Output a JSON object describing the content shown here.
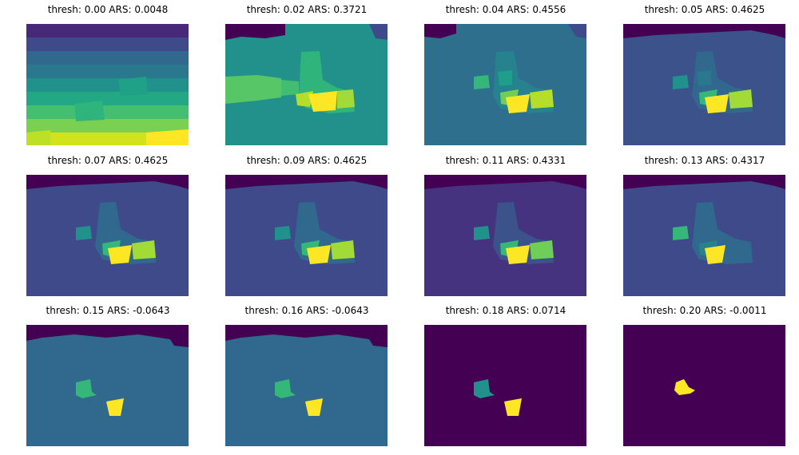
{
  "panels": [
    {
      "title": "thresh: 0.00 ARS: 0.0048"
    },
    {
      "title": "thresh: 0.02 ARS: 0.3721"
    },
    {
      "title": "thresh: 0.04 ARS: 0.4556"
    },
    {
      "title": "thresh: 0.05 ARS: 0.4625"
    },
    {
      "title": "thresh: 0.07 ARS: 0.4625"
    },
    {
      "title": "thresh: 0.09 ARS: 0.4625"
    },
    {
      "title": "thresh: 0.11 ARS: 0.4331"
    },
    {
      "title": "thresh: 0.13 ARS: 0.4317"
    },
    {
      "title": "thresh: 0.15 ARS: -0.0643"
    },
    {
      "title": "thresh: 0.16 ARS: -0.0643"
    },
    {
      "title": "thresh: 0.18 ARS: 0.0714"
    },
    {
      "title": "thresh: 0.20 ARS: -0.0011"
    }
  ],
  "colors": {
    "purple": "#440154",
    "indigo": "#3e4a89",
    "blue": "#31688e",
    "teal": "#26828e",
    "green_teal": "#1f9e89",
    "green": "#35b779",
    "light_green": "#6ece58",
    "lime": "#b5de2b",
    "yellow": "#fde725"
  }
}
